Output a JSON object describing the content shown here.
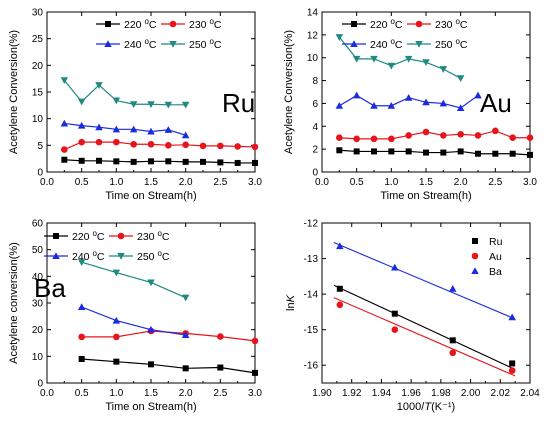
{
  "chart_data": [
    {
      "type": "line",
      "panel_label": "Ru",
      "xlabel": "Time on Stream(h)",
      "ylabel": "Acetylene Conversion(%)",
      "xlim": [
        0.0,
        3.0
      ],
      "ylim": [
        0,
        30
      ],
      "xticks": [
        "0.0",
        "0.5",
        "1.0",
        "1.5",
        "2.0",
        "2.5",
        "3.0"
      ],
      "yticks": [
        "0",
        "5",
        "10",
        "15",
        "20",
        "25",
        "30"
      ],
      "legend": "top",
      "series": [
        {
          "name": "220 °C",
          "color": "#000000",
          "marker": "square",
          "x": [
            0.25,
            0.5,
            0.75,
            1.0,
            1.25,
            1.5,
            1.75,
            2.0,
            2.25,
            2.5,
            2.75,
            3.0
          ],
          "y": [
            2.3,
            2.1,
            2.1,
            2.0,
            1.9,
            2.0,
            2.0,
            1.9,
            1.9,
            1.8,
            1.7,
            1.7
          ]
        },
        {
          "name": "230 °C",
          "color": "#e8141c",
          "marker": "circle",
          "x": [
            0.25,
            0.5,
            0.75,
            1.0,
            1.25,
            1.5,
            1.75,
            2.0,
            2.25,
            2.5,
            2.75,
            3.0
          ],
          "y": [
            4.2,
            5.6,
            5.6,
            5.6,
            5.2,
            5.2,
            5.0,
            5.1,
            4.9,
            4.9,
            4.8,
            4.7
          ]
        },
        {
          "name": "240 °C",
          "color": "#1a2be0",
          "marker": "triangle-up",
          "x": [
            0.25,
            0.5,
            0.75,
            1.0,
            1.25,
            1.5,
            1.75,
            2.0
          ],
          "y": [
            9.1,
            8.7,
            8.4,
            8.0,
            8.0,
            7.6,
            7.9,
            6.9
          ]
        },
        {
          "name": "250 °C",
          "color": "#1e8a80",
          "marker": "triangle-down",
          "x": [
            0.25,
            0.5,
            0.75,
            1.0,
            1.25,
            1.5,
            1.75,
            2.0
          ],
          "y": [
            17.2,
            13.2,
            16.3,
            13.4,
            12.7,
            12.7,
            12.6,
            12.6
          ]
        }
      ]
    },
    {
      "type": "line",
      "panel_label": "Au",
      "xlabel": "Time on Stream(h)",
      "ylabel": "Acetylene Conversion(%)",
      "xlim": [
        0.0,
        3.0
      ],
      "ylim": [
        0,
        14
      ],
      "xticks": [
        "0.0",
        "0.5",
        "1.0",
        "1.5",
        "2.0",
        "2.5",
        "3.0"
      ],
      "yticks": [
        "0",
        "2",
        "4",
        "6",
        "8",
        "10",
        "12",
        "14"
      ],
      "legend": "top",
      "series": [
        {
          "name": "220 °C",
          "color": "#000000",
          "marker": "square",
          "x": [
            0.25,
            0.5,
            0.75,
            1.0,
            1.25,
            1.5,
            1.75,
            2.0,
            2.25,
            2.5,
            2.75,
            3.0
          ],
          "y": [
            1.9,
            1.8,
            1.8,
            1.8,
            1.8,
            1.7,
            1.7,
            1.8,
            1.6,
            1.6,
            1.6,
            1.5
          ]
        },
        {
          "name": "230 °C",
          "color": "#e8141c",
          "marker": "circle",
          "x": [
            0.25,
            0.5,
            0.75,
            1.0,
            1.25,
            1.5,
            1.75,
            2.0,
            2.25,
            2.5,
            2.75,
            3.0
          ],
          "y": [
            3.0,
            2.9,
            2.9,
            2.9,
            3.2,
            3.5,
            3.2,
            3.3,
            3.2,
            3.6,
            3.0,
            3.0
          ]
        },
        {
          "name": "240 °C",
          "color": "#1a2be0",
          "marker": "triangle-up",
          "x": [
            0.25,
            0.5,
            0.75,
            1.0,
            1.25,
            1.5,
            1.75,
            2.0,
            2.25
          ],
          "y": [
            5.8,
            6.7,
            5.8,
            5.8,
            6.5,
            6.1,
            6.0,
            5.6,
            6.7
          ]
        },
        {
          "name": "250 °C",
          "color": "#1e8a80",
          "marker": "triangle-down",
          "x": [
            0.25,
            0.5,
            0.75,
            1.0,
            1.25,
            1.5,
            1.75,
            2.0
          ],
          "y": [
            11.8,
            9.9,
            9.9,
            9.3,
            9.9,
            9.6,
            9.0,
            8.2
          ]
        }
      ]
    },
    {
      "type": "line",
      "panel_label": "Ba",
      "xlabel": "Time on Stream(h)",
      "ylabel": "Acetylene conversion(%)",
      "xlim": [
        0.0,
        3.0
      ],
      "ylim": [
        0,
        60
      ],
      "xticks": [
        "0.0",
        "0.5",
        "1.0",
        "1.5",
        "2.0",
        "2.5",
        "3.0"
      ],
      "yticks": [
        "0",
        "10",
        "20",
        "30",
        "40",
        "50",
        "60"
      ],
      "legend": "top",
      "series": [
        {
          "name": "220 °C",
          "color": "#000000",
          "marker": "square",
          "x": [
            0.5,
            1.0,
            1.5,
            2.0,
            2.5,
            3.0
          ],
          "y": [
            9.0,
            8.0,
            7.0,
            5.5,
            5.8,
            3.8
          ]
        },
        {
          "name": "230 °C",
          "color": "#e8141c",
          "marker": "circle",
          "x": [
            0.5,
            1.0,
            1.5,
            2.0,
            2.5,
            3.0
          ],
          "y": [
            17.3,
            17.3,
            19.5,
            18.6,
            17.4,
            15.8
          ]
        },
        {
          "name": "240 °C",
          "color": "#1a2be0",
          "marker": "triangle-up",
          "x": [
            0.5,
            1.0,
            1.5,
            2.0
          ],
          "y": [
            28.5,
            23.4,
            20.0,
            18.0
          ]
        },
        {
          "name": "250 °C",
          "color": "#1e8a80",
          "marker": "triangle-down",
          "x": [
            0.5,
            1.0,
            1.5,
            2.0
          ],
          "y": [
            45.3,
            41.4,
            37.7,
            32.0
          ]
        }
      ]
    },
    {
      "type": "scatter",
      "panel_label": "",
      "xlabel": "1000/T(K⁻¹)",
      "ylabel": "lnK",
      "xlim": [
        1.9,
        2.04
      ],
      "ylim": [
        -16.5,
        -12.0
      ],
      "xticks": [
        "1.90",
        "1.92",
        "1.94",
        "1.96",
        "1.98",
        "2.00",
        "2.02",
        "2.04"
      ],
      "yticks": [
        "-12",
        "-13",
        "-14",
        "-15",
        "-16"
      ],
      "legend": "top-right",
      "series": [
        {
          "name": "Ru",
          "color": "#000000",
          "marker": "square",
          "x": [
            1.912,
            1.949,
            1.988,
            2.028
          ],
          "y": [
            -13.85,
            -14.55,
            -15.3,
            -15.95
          ],
          "fit": [
            [
              1.908,
              -13.75
            ],
            [
              2.03,
              -16.12
            ]
          ]
        },
        {
          "name": "Au",
          "color": "#e8141c",
          "marker": "circle",
          "x": [
            1.912,
            1.949,
            1.988,
            2.028
          ],
          "y": [
            -14.3,
            -15.0,
            -15.65,
            -16.15
          ],
          "fit": [
            [
              1.908,
              -14.1
            ],
            [
              2.03,
              -16.3
            ]
          ]
        },
        {
          "name": "Ba",
          "color": "#1a2be0",
          "marker": "triangle-up",
          "x": [
            1.912,
            1.949,
            1.988,
            2.028
          ],
          "y": [
            -12.65,
            -13.25,
            -13.85,
            -14.65
          ],
          "fit": [
            [
              1.908,
              -12.55
            ],
            [
              2.03,
              -14.7
            ]
          ]
        }
      ]
    }
  ]
}
